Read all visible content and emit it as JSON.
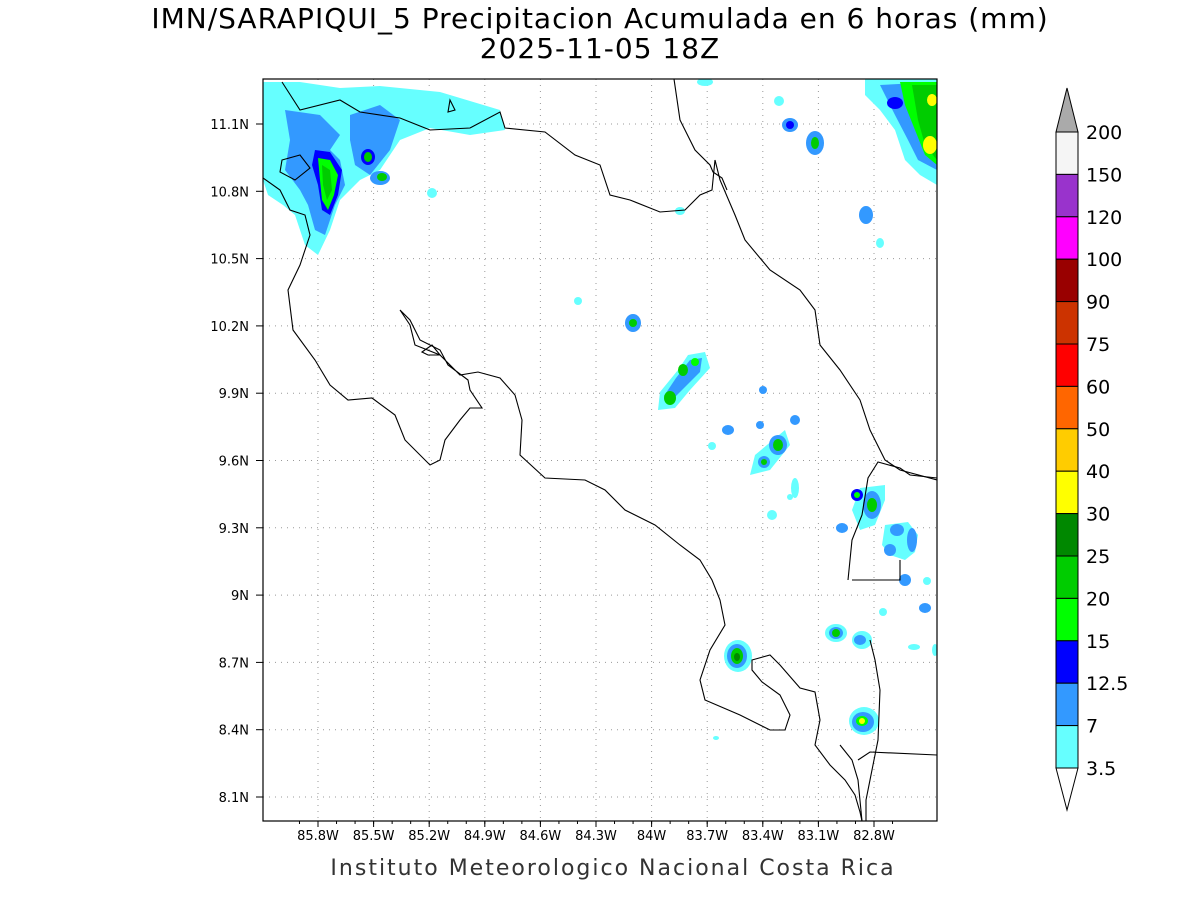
{
  "title": {
    "line1": "IMN/SARAPIQUI_5 Precipitacion Acumulada en 6 horas (mm)",
    "line2": "2025-11-05 18Z"
  },
  "footer": "Instituto Meteorologico Nacional Costa Rica",
  "map": {
    "lon_range": [
      -86.0,
      -82.6
    ],
    "lat_range": [
      8.0,
      11.3
    ],
    "lon_ticks": [
      {
        "value": -85.8,
        "label": "85.8W"
      },
      {
        "value": -85.5,
        "label": "85.5W"
      },
      {
        "value": -85.2,
        "label": "85.2W"
      },
      {
        "value": -84.9,
        "label": "84.9W"
      },
      {
        "value": -84.6,
        "label": "84.6W"
      },
      {
        "value": -84.3,
        "label": "84.3W"
      },
      {
        "value": -84.0,
        "label": "84W"
      },
      {
        "value": -83.7,
        "label": "83.7W"
      },
      {
        "value": -83.4,
        "label": "83.4W"
      },
      {
        "value": -83.1,
        "label": "83.1W"
      },
      {
        "value": -82.8,
        "label": "82.8W"
      }
    ],
    "lat_ticks": [
      {
        "value": 11.1,
        "label": "11.1N"
      },
      {
        "value": 10.8,
        "label": "10.8N"
      },
      {
        "value": 10.5,
        "label": "10.5N"
      },
      {
        "value": 10.2,
        "label": "10.2N"
      },
      {
        "value": 9.9,
        "label": "9.9N"
      },
      {
        "value": 9.6,
        "label": "9.6N"
      },
      {
        "value": 9.3,
        "label": "9.3N"
      },
      {
        "value": 9.0,
        "label": "9N"
      },
      {
        "value": 8.7,
        "label": "8.7N"
      },
      {
        "value": 8.4,
        "label": "8.4N"
      },
      {
        "value": 8.1,
        "label": "8.1N"
      }
    ],
    "grid": "dotted",
    "colorbar": [
      {
        "label": "3.5",
        "color": "#66ffff"
      },
      {
        "label": "7",
        "color": "#3399ff"
      },
      {
        "label": "12.5",
        "color": "#0000ff"
      },
      {
        "label": "15",
        "color": "#00ff00"
      },
      {
        "label": "20",
        "color": "#00cc00"
      },
      {
        "label": "25",
        "color": "#008800"
      },
      {
        "label": "30",
        "color": "#ffff00"
      },
      {
        "label": "40",
        "color": "#ffcc00"
      },
      {
        "label": "50",
        "color": "#ff6600"
      },
      {
        "label": "60",
        "color": "#ff0000"
      },
      {
        "label": "75",
        "color": "#cc3300"
      },
      {
        "label": "90",
        "color": "#990000"
      },
      {
        "label": "100",
        "color": "#ff00ff"
      },
      {
        "label": "120",
        "color": "#9933cc"
      },
      {
        "label": "150",
        "color": "#f5f5f5"
      },
      {
        "label": "200",
        "color": "#aaaaaa"
      }
    ]
  }
}
